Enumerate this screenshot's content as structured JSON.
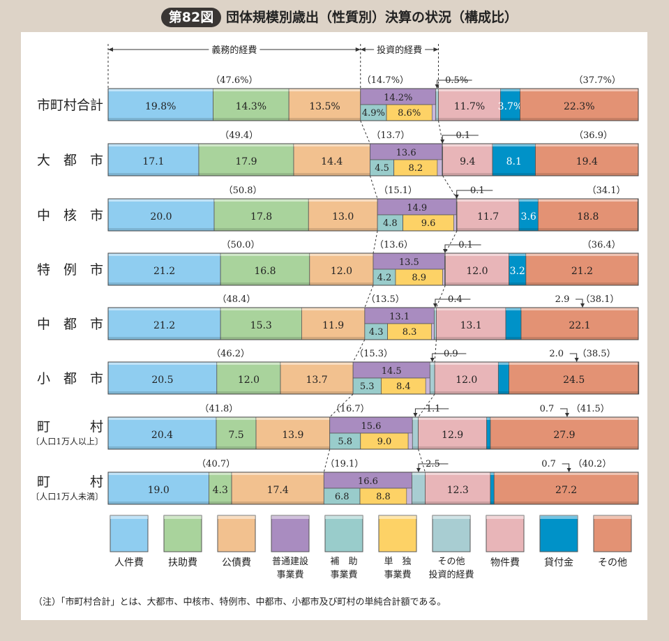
{
  "figure": {
    "badge": "第82図",
    "title": "団体規模別歳出（性質別）決算の状況（構成比）",
    "note": "（注）「市町村合計」とは、大都市、中核市、特例市、中都市、小都市及び町村の単純合計額である。"
  },
  "chart_data": {
    "type": "bar",
    "orientation": "horizontal",
    "stacked": true,
    "percent_stacked": true,
    "unit": "%",
    "groups": [
      {
        "name": "義務的経費",
        "series": [
          "人件費",
          "扶助費",
          "公債費"
        ]
      },
      {
        "name": "投資的経費",
        "series": [
          "普通建設事業費",
          "その他投資的経費"
        ]
      }
    ],
    "categories": [
      {
        "label": "市町村合計"
      },
      {
        "label": "大　都　市"
      },
      {
        "label": "中　核　市"
      },
      {
        "label": "特　例　市"
      },
      {
        "label": "中　都　市"
      },
      {
        "label": "小　都　市"
      },
      {
        "label": "町　　　村",
        "sublabel": "〔人口1万人以上〕"
      },
      {
        "label": "町　　　村",
        "sublabel": "〔人口1万人未満〕"
      }
    ],
    "series": [
      {
        "name": "人件費",
        "color": "#8fcdf0",
        "values": [
          19.8,
          17.1,
          20.0,
          21.2,
          21.2,
          20.5,
          20.4,
          19.0
        ],
        "labels": [
          "19.8%",
          "17.1",
          "20.0",
          "21.2",
          "21.2",
          "20.5",
          "20.4",
          "19.0"
        ]
      },
      {
        "name": "扶助費",
        "color": "#a9d39c",
        "values": [
          14.3,
          17.9,
          17.8,
          16.8,
          15.3,
          12.0,
          7.5,
          4.3
        ],
        "labels": [
          "14.3%",
          "17.9",
          "17.8",
          "16.8",
          "15.3",
          "12.0",
          "7.5",
          "4.3"
        ]
      },
      {
        "name": "公債費",
        "color": "#f2c18f",
        "values": [
          13.5,
          14.4,
          13.0,
          12.0,
          11.9,
          13.7,
          13.9,
          17.4
        ],
        "labels": [
          "13.5%",
          "14.4",
          "13.0",
          "12.0",
          "11.9",
          "13.7",
          "13.9",
          "17.4"
        ]
      },
      {
        "name": "普通建設事業費",
        "legend_lines": [
          "普通建設",
          "事業費"
        ],
        "color": "#a98cc0",
        "values": [
          14.2,
          13.6,
          14.9,
          13.5,
          13.1,
          14.5,
          15.6,
          16.6
        ],
        "labels": [
          "14.2%",
          "13.6",
          "14.9",
          "13.5",
          "13.1",
          "14.5",
          "15.6",
          "16.6"
        ]
      },
      {
        "name": "補助事業費",
        "legend_lines": [
          "補　助",
          "事業費"
        ],
        "color": "#99cccb",
        "sub_of": "普通建設事業費",
        "values": [
          4.9,
          4.5,
          4.8,
          4.2,
          4.3,
          5.3,
          5.8,
          6.8
        ],
        "labels": [
          "4.9%",
          "4.5",
          "4.8",
          "4.2",
          "4.3",
          "5.3",
          "5.8",
          "6.8"
        ]
      },
      {
        "name": "単独事業費",
        "legend_lines": [
          "単　独",
          "事業費"
        ],
        "color": "#fdd266",
        "sub_of": "普通建設事業費",
        "values": [
          8.6,
          8.2,
          9.6,
          8.9,
          8.3,
          8.4,
          9.0,
          8.8
        ],
        "labels": [
          "8.6%",
          "8.2",
          "9.6",
          "8.9",
          "8.3",
          "8.4",
          "9.0",
          "8.8"
        ]
      },
      {
        "name": "その他投資的経費",
        "legend_lines": [
          "その他",
          "投資的経費"
        ],
        "color": "#a8cdd2",
        "values": [
          0.5,
          0.1,
          0.1,
          0.1,
          0.4,
          0.9,
          1.1,
          2.5
        ],
        "labels": [
          "0.5%",
          "0.1",
          "0.1",
          "0.1",
          "0.4",
          "0.9",
          "1.1",
          "2.5"
        ]
      },
      {
        "name": "物件費",
        "color": "#e8b5b8",
        "values": [
          11.7,
          9.4,
          11.7,
          12.0,
          13.1,
          12.0,
          12.9,
          12.3
        ],
        "labels": [
          "11.7%",
          "9.4",
          "11.7",
          "12.0",
          "13.1",
          "12.0",
          "12.9",
          "12.3"
        ]
      },
      {
        "name": "貸付金",
        "color": "#0092c8",
        "values": [
          3.7,
          8.1,
          3.6,
          3.2,
          2.9,
          2.0,
          0.7,
          0.7
        ],
        "labels": [
          "3.7%",
          "8.1",
          "3.6",
          "3.2",
          "2.9",
          "2.0",
          "0.7",
          "0.7"
        ]
      },
      {
        "name": "その他",
        "color": "#e39274",
        "values": [
          22.3,
          19.4,
          18.8,
          21.2,
          22.1,
          24.5,
          27.9,
          27.2
        ],
        "labels": [
          "22.3%",
          "19.4",
          "18.8",
          "21.2",
          "22.1",
          "24.5",
          "27.9",
          "27.2"
        ]
      }
    ],
    "group_totals": {
      "義務的経費": [
        "（47.6%）",
        "（49.4）",
        "（50.8）",
        "（50.0）",
        "（48.4）",
        "（46.2）",
        "（41.8）",
        "（40.7）"
      ],
      "投資的経費": [
        "（14.7%）",
        "（13.7）",
        "（15.1）",
        "（13.6）",
        "（13.5）",
        "（15.3）",
        "（16.7）",
        "（19.1）"
      ],
      "その他計": [
        "（37.7%）",
        "（36.9）",
        "（34.1）",
        "（36.4）",
        "（38.1）",
        "（38.5）",
        "（41.5）",
        "（40.2）"
      ]
    }
  }
}
